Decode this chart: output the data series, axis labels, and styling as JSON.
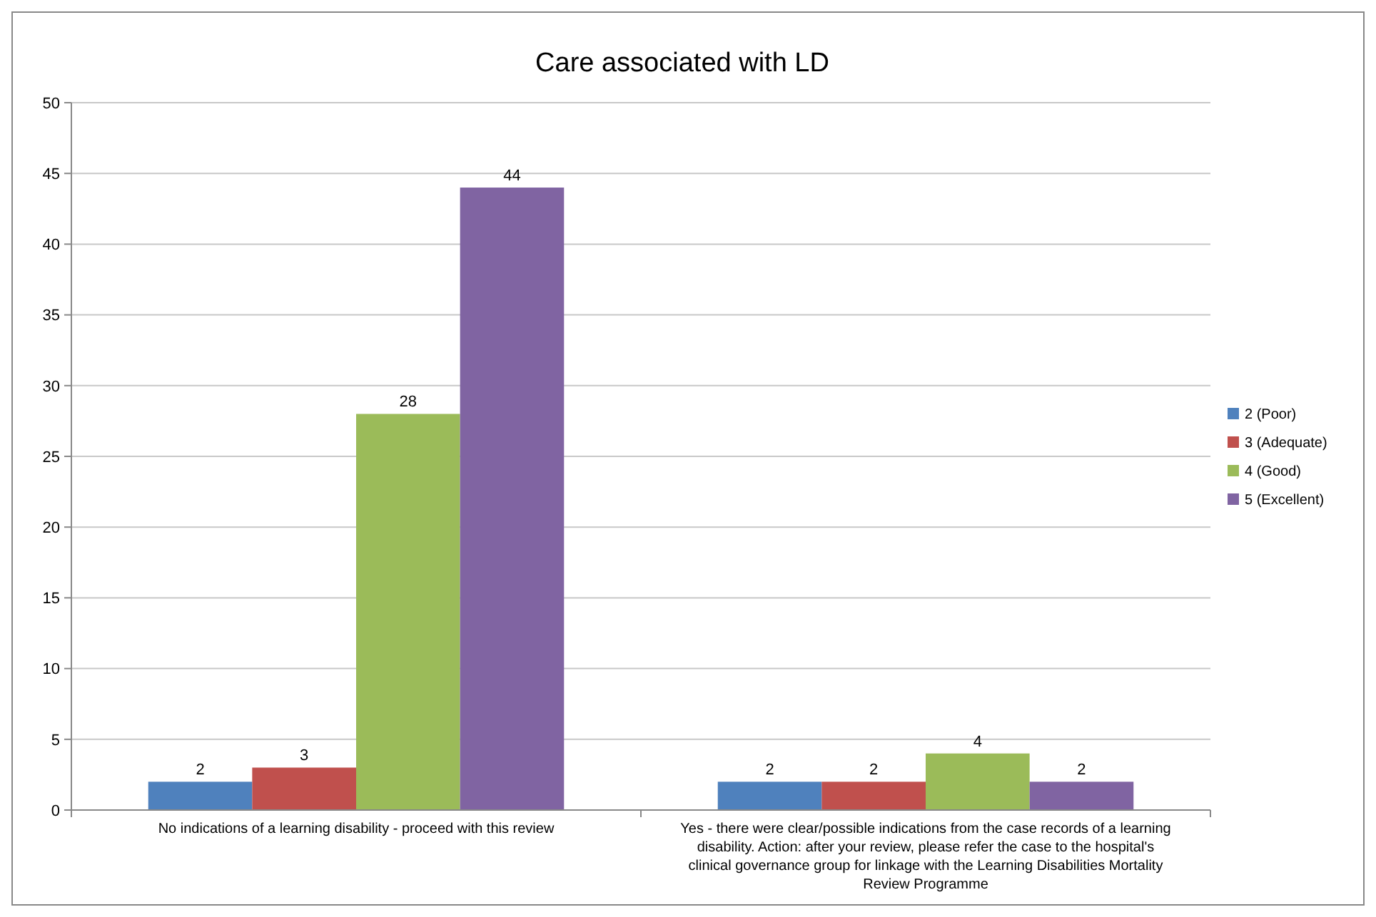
{
  "chart_data": {
    "type": "bar",
    "title": "Care associated with LD",
    "categories": [
      "No indications of a learning disability - proceed with this review",
      "Yes - there were clear/possible indications from the case records of a learning disability. Action: after your review, please refer the case to the hospital's clinical governance group for linkage with the Learning Disabilities Mortality Review Programme"
    ],
    "series": [
      {
        "name": "2 (Poor)",
        "color": "#4f81bd",
        "values": [
          2,
          2
        ]
      },
      {
        "name": "3 (Adequate)",
        "color": "#c0504d",
        "values": [
          3,
          2
        ]
      },
      {
        "name": "4 (Good)",
        "color": "#9bbb59",
        "values": [
          28,
          4
        ]
      },
      {
        "name": "5 (Excellent)",
        "color": "#8064a2",
        "values": [
          44,
          2
        ]
      }
    ],
    "ylim": [
      0,
      50
    ],
    "yticks": [
      0,
      5,
      10,
      15,
      20,
      25,
      30,
      35,
      40,
      45,
      50
    ],
    "grid": "y",
    "legend": "right",
    "data_labels": true
  }
}
